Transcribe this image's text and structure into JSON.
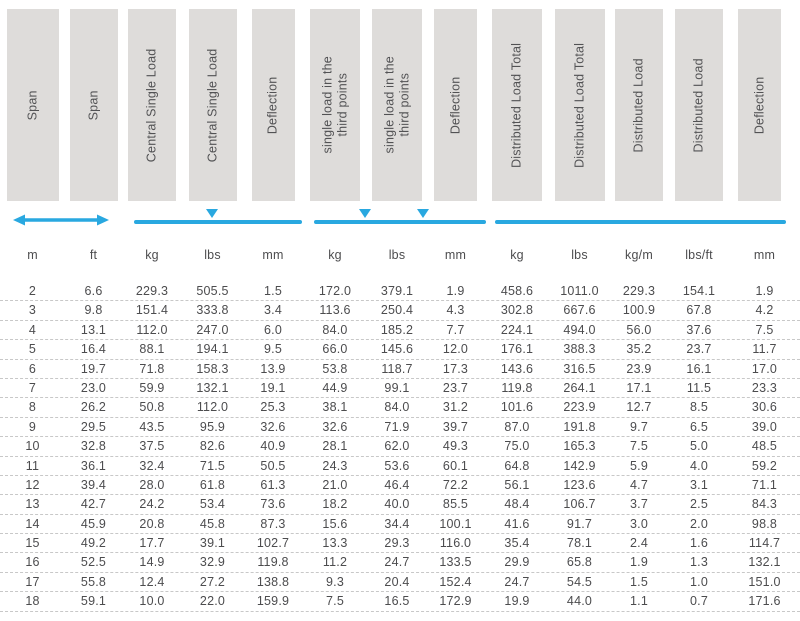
{
  "colors": {
    "accent_blue": "#29a8e0",
    "header_box_gray": "#dedcda",
    "text_gray": "#4d4d4f",
    "row_divider_gray": "#c8c8c8"
  },
  "indicators": {
    "span_extent": "double-headed-arrow",
    "central_load_markers": 1,
    "third_point_load_markers": 2,
    "distributed_load_markers": 0
  },
  "table": {
    "header_labels": [
      "Span",
      "Span",
      "Central Single Load",
      "Central Single Load",
      "Deflection",
      "single load in the\nthird points",
      "single load in the\nthird points",
      "Deflection",
      "Distributed Load Total",
      "Distributed Load Total",
      "Distributed Load",
      "Distributed Load",
      "Deflection"
    ],
    "units": [
      "m",
      "ft",
      "kg",
      "lbs",
      "mm",
      "kg",
      "lbs",
      "mm",
      "kg",
      "lbs",
      "kg/m",
      "lbs/ft",
      "mm"
    ],
    "rows": [
      [
        "2",
        "6.6",
        "229.3",
        "505.5",
        "1.5",
        "172.0",
        "379.1",
        "1.9",
        "458.6",
        "1011.0",
        "229.3",
        "154.1",
        "1.9"
      ],
      [
        "3",
        "9.8",
        "151.4",
        "333.8",
        "3.4",
        "113.6",
        "250.4",
        "4.3",
        "302.8",
        "667.6",
        "100.9",
        "67.8",
        "4.2"
      ],
      [
        "4",
        "13.1",
        "112.0",
        "247.0",
        "6.0",
        "84.0",
        "185.2",
        "7.7",
        "224.1",
        "494.0",
        "56.0",
        "37.6",
        "7.5"
      ],
      [
        "5",
        "16.4",
        "88.1",
        "194.1",
        "9.5",
        "66.0",
        "145.6",
        "12.0",
        "176.1",
        "388.3",
        "35.2",
        "23.7",
        "11.7"
      ],
      [
        "6",
        "19.7",
        "71.8",
        "158.3",
        "13.9",
        "53.8",
        "118.7",
        "17.3",
        "143.6",
        "316.5",
        "23.9",
        "16.1",
        "17.0"
      ],
      [
        "7",
        "23.0",
        "59.9",
        "132.1",
        "19.1",
        "44.9",
        "99.1",
        "23.7",
        "119.8",
        "264.1",
        "17.1",
        "11.5",
        "23.3"
      ],
      [
        "8",
        "26.2",
        "50.8",
        "112.0",
        "25.3",
        "38.1",
        "84.0",
        "31.2",
        "101.6",
        "223.9",
        "12.7",
        "8.5",
        "30.6"
      ],
      [
        "9",
        "29.5",
        "43.5",
        "95.9",
        "32.6",
        "32.6",
        "71.9",
        "39.7",
        "87.0",
        "191.8",
        "9.7",
        "6.5",
        "39.0"
      ],
      [
        "10",
        "32.8",
        "37.5",
        "82.6",
        "40.9",
        "28.1",
        "62.0",
        "49.3",
        "75.0",
        "165.3",
        "7.5",
        "5.0",
        "48.5"
      ],
      [
        "11",
        "36.1",
        "32.4",
        "71.5",
        "50.5",
        "24.3",
        "53.6",
        "60.1",
        "64.8",
        "142.9",
        "5.9",
        "4.0",
        "59.2"
      ],
      [
        "12",
        "39.4",
        "28.0",
        "61.8",
        "61.3",
        "21.0",
        "46.4",
        "72.2",
        "56.1",
        "123.6",
        "4.7",
        "3.1",
        "71.1"
      ],
      [
        "13",
        "42.7",
        "24.2",
        "53.4",
        "73.6",
        "18.2",
        "40.0",
        "85.5",
        "48.4",
        "106.7",
        "3.7",
        "2.5",
        "84.3"
      ],
      [
        "14",
        "45.9",
        "20.8",
        "45.8",
        "87.3",
        "15.6",
        "34.4",
        "100.1",
        "41.6",
        "91.7",
        "3.0",
        "2.0",
        "98.8"
      ],
      [
        "15",
        "49.2",
        "17.7",
        "39.1",
        "102.7",
        "13.3",
        "29.3",
        "116.0",
        "35.4",
        "78.1",
        "2.4",
        "1.6",
        "114.7"
      ],
      [
        "16",
        "52.5",
        "14.9",
        "32.9",
        "119.8",
        "11.2",
        "24.7",
        "133.5",
        "29.9",
        "65.8",
        "1.9",
        "1.3",
        "132.1"
      ],
      [
        "17",
        "55.8",
        "12.4",
        "27.2",
        "138.8",
        "9.3",
        "20.4",
        "152.4",
        "24.7",
        "54.5",
        "1.5",
        "1.0",
        "151.0"
      ],
      [
        "18",
        "59.1",
        "10.0",
        "22.0",
        "159.9",
        "7.5",
        "16.5",
        "172.9",
        "19.9",
        "44.0",
        "1.1",
        "0.7",
        "171.6"
      ]
    ]
  },
  "chart_data": {
    "type": "table",
    "title": "Span load and deflection table",
    "columns": [
      "Span (m)",
      "Span (ft)",
      "Central Single Load (kg)",
      "Central Single Load (lbs)",
      "Deflection (mm)",
      "single load in the third points (kg)",
      "single load in the third points (lbs)",
      "Deflection (mm)",
      "Distributed Load Total (kg)",
      "Distributed Load Total (lbs)",
      "Distributed Load (kg/m)",
      "Distributed Load (lbs/ft)",
      "Deflection (mm)"
    ],
    "rows": [
      [
        2,
        6.6,
        229.3,
        505.5,
        1.5,
        172.0,
        379.1,
        1.9,
        458.6,
        1011.0,
        229.3,
        154.1,
        1.9
      ],
      [
        3,
        9.8,
        151.4,
        333.8,
        3.4,
        113.6,
        250.4,
        4.3,
        302.8,
        667.6,
        100.9,
        67.8,
        4.2
      ],
      [
        4,
        13.1,
        112.0,
        247.0,
        6.0,
        84.0,
        185.2,
        7.7,
        224.1,
        494.0,
        56.0,
        37.6,
        7.5
      ],
      [
        5,
        16.4,
        88.1,
        194.1,
        9.5,
        66.0,
        145.6,
        12.0,
        176.1,
        388.3,
        35.2,
        23.7,
        11.7
      ],
      [
        6,
        19.7,
        71.8,
        158.3,
        13.9,
        53.8,
        118.7,
        17.3,
        143.6,
        316.5,
        23.9,
        16.1,
        17.0
      ],
      [
        7,
        23.0,
        59.9,
        132.1,
        19.1,
        44.9,
        99.1,
        23.7,
        119.8,
        264.1,
        17.1,
        11.5,
        23.3
      ],
      [
        8,
        26.2,
        50.8,
        112.0,
        25.3,
        38.1,
        84.0,
        31.2,
        101.6,
        223.9,
        12.7,
        8.5,
        30.6
      ],
      [
        9,
        29.5,
        43.5,
        95.9,
        32.6,
        32.6,
        71.9,
        39.7,
        87.0,
        191.8,
        9.7,
        6.5,
        39.0
      ],
      [
        10,
        32.8,
        37.5,
        82.6,
        40.9,
        28.1,
        62.0,
        49.3,
        75.0,
        165.3,
        7.5,
        5.0,
        48.5
      ],
      [
        11,
        36.1,
        32.4,
        71.5,
        50.5,
        24.3,
        53.6,
        60.1,
        64.8,
        142.9,
        5.9,
        4.0,
        59.2
      ],
      [
        12,
        39.4,
        28.0,
        61.8,
        61.3,
        21.0,
        46.4,
        72.2,
        56.1,
        123.6,
        4.7,
        3.1,
        71.1
      ],
      [
        13,
        42.7,
        24.2,
        53.4,
        73.6,
        18.2,
        40.0,
        85.5,
        48.4,
        106.7,
        3.7,
        2.5,
        84.3
      ],
      [
        14,
        45.9,
        20.8,
        45.8,
        87.3,
        15.6,
        34.4,
        100.1,
        41.6,
        91.7,
        3.0,
        2.0,
        98.8
      ],
      [
        15,
        49.2,
        17.7,
        39.1,
        102.7,
        13.3,
        29.3,
        116.0,
        35.4,
        78.1,
        2.4,
        1.6,
        114.7
      ],
      [
        16,
        52.5,
        14.9,
        32.9,
        119.8,
        11.2,
        24.7,
        133.5,
        29.9,
        65.8,
        1.9,
        1.3,
        132.1
      ],
      [
        17,
        55.8,
        12.4,
        27.2,
        138.8,
        9.3,
        20.4,
        152.4,
        24.7,
        54.5,
        1.5,
        1.0,
        151.0
      ],
      [
        18,
        59.1,
        10.0,
        22.0,
        159.9,
        7.5,
        16.5,
        172.9,
        19.9,
        44.0,
        1.1,
        0.7,
        171.6
      ]
    ]
  }
}
